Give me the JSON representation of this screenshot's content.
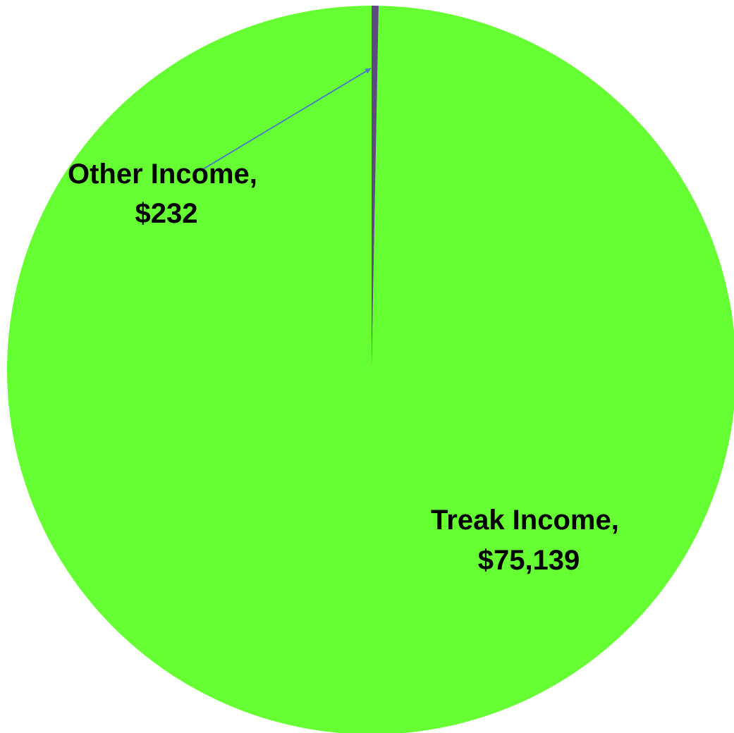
{
  "chart_data": {
    "type": "pie",
    "slices": [
      {
        "label": "Treak Income",
        "value": 75139,
        "label_line1": "Treak Income,",
        "label_line2": "$75,139",
        "color": "#66ff33"
      },
      {
        "label": "Other Income",
        "value": 232,
        "label_line1": "Other Income,",
        "label_line2": "$232",
        "color": "#5c4a80"
      }
    ],
    "leader_line_color": "#4a7fc0",
    "legend": "none"
  }
}
